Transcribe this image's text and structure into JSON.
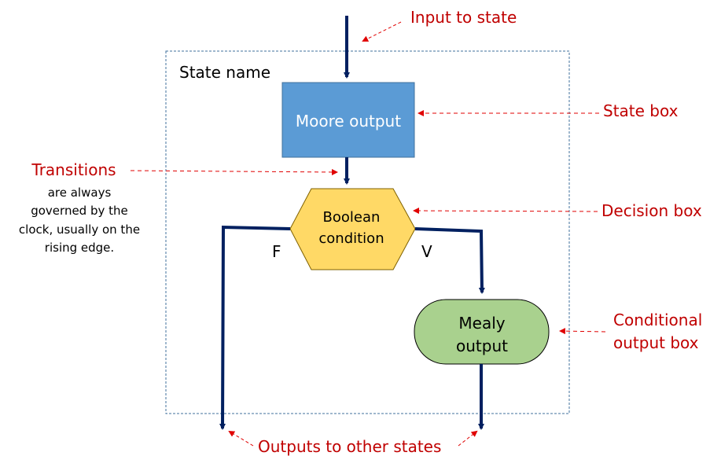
{
  "state_name": "State name",
  "moore_output": "Moore output",
  "decision": {
    "line1": "Boolean",
    "line2": "condition"
  },
  "branch_false": "F",
  "branch_true": "V",
  "mealy": {
    "line1": "Mealy",
    "line2": "output"
  },
  "annotations": {
    "input_to_state": "Input to state",
    "state_box": "State box",
    "transitions_title": "Transitions",
    "transitions_note": [
      "are always",
      "governed by the",
      "clock, usually on the",
      "rising edge."
    ],
    "decision_box": "Decision box",
    "conditional_output_box": [
      "Conditional",
      "output box"
    ],
    "outputs_to_other_states": "Outputs to other states"
  },
  "colors": {
    "state_box_fill": "#5B9BD5",
    "state_box_stroke": "#41719C",
    "decision_fill": "#FFD966",
    "decision_stroke": "#7F6000",
    "mealy_fill": "#A9D18E",
    "mealy_stroke": "#000000",
    "flow_line": "#002060",
    "annotation": "#C00000",
    "frame": "#41719C"
  }
}
